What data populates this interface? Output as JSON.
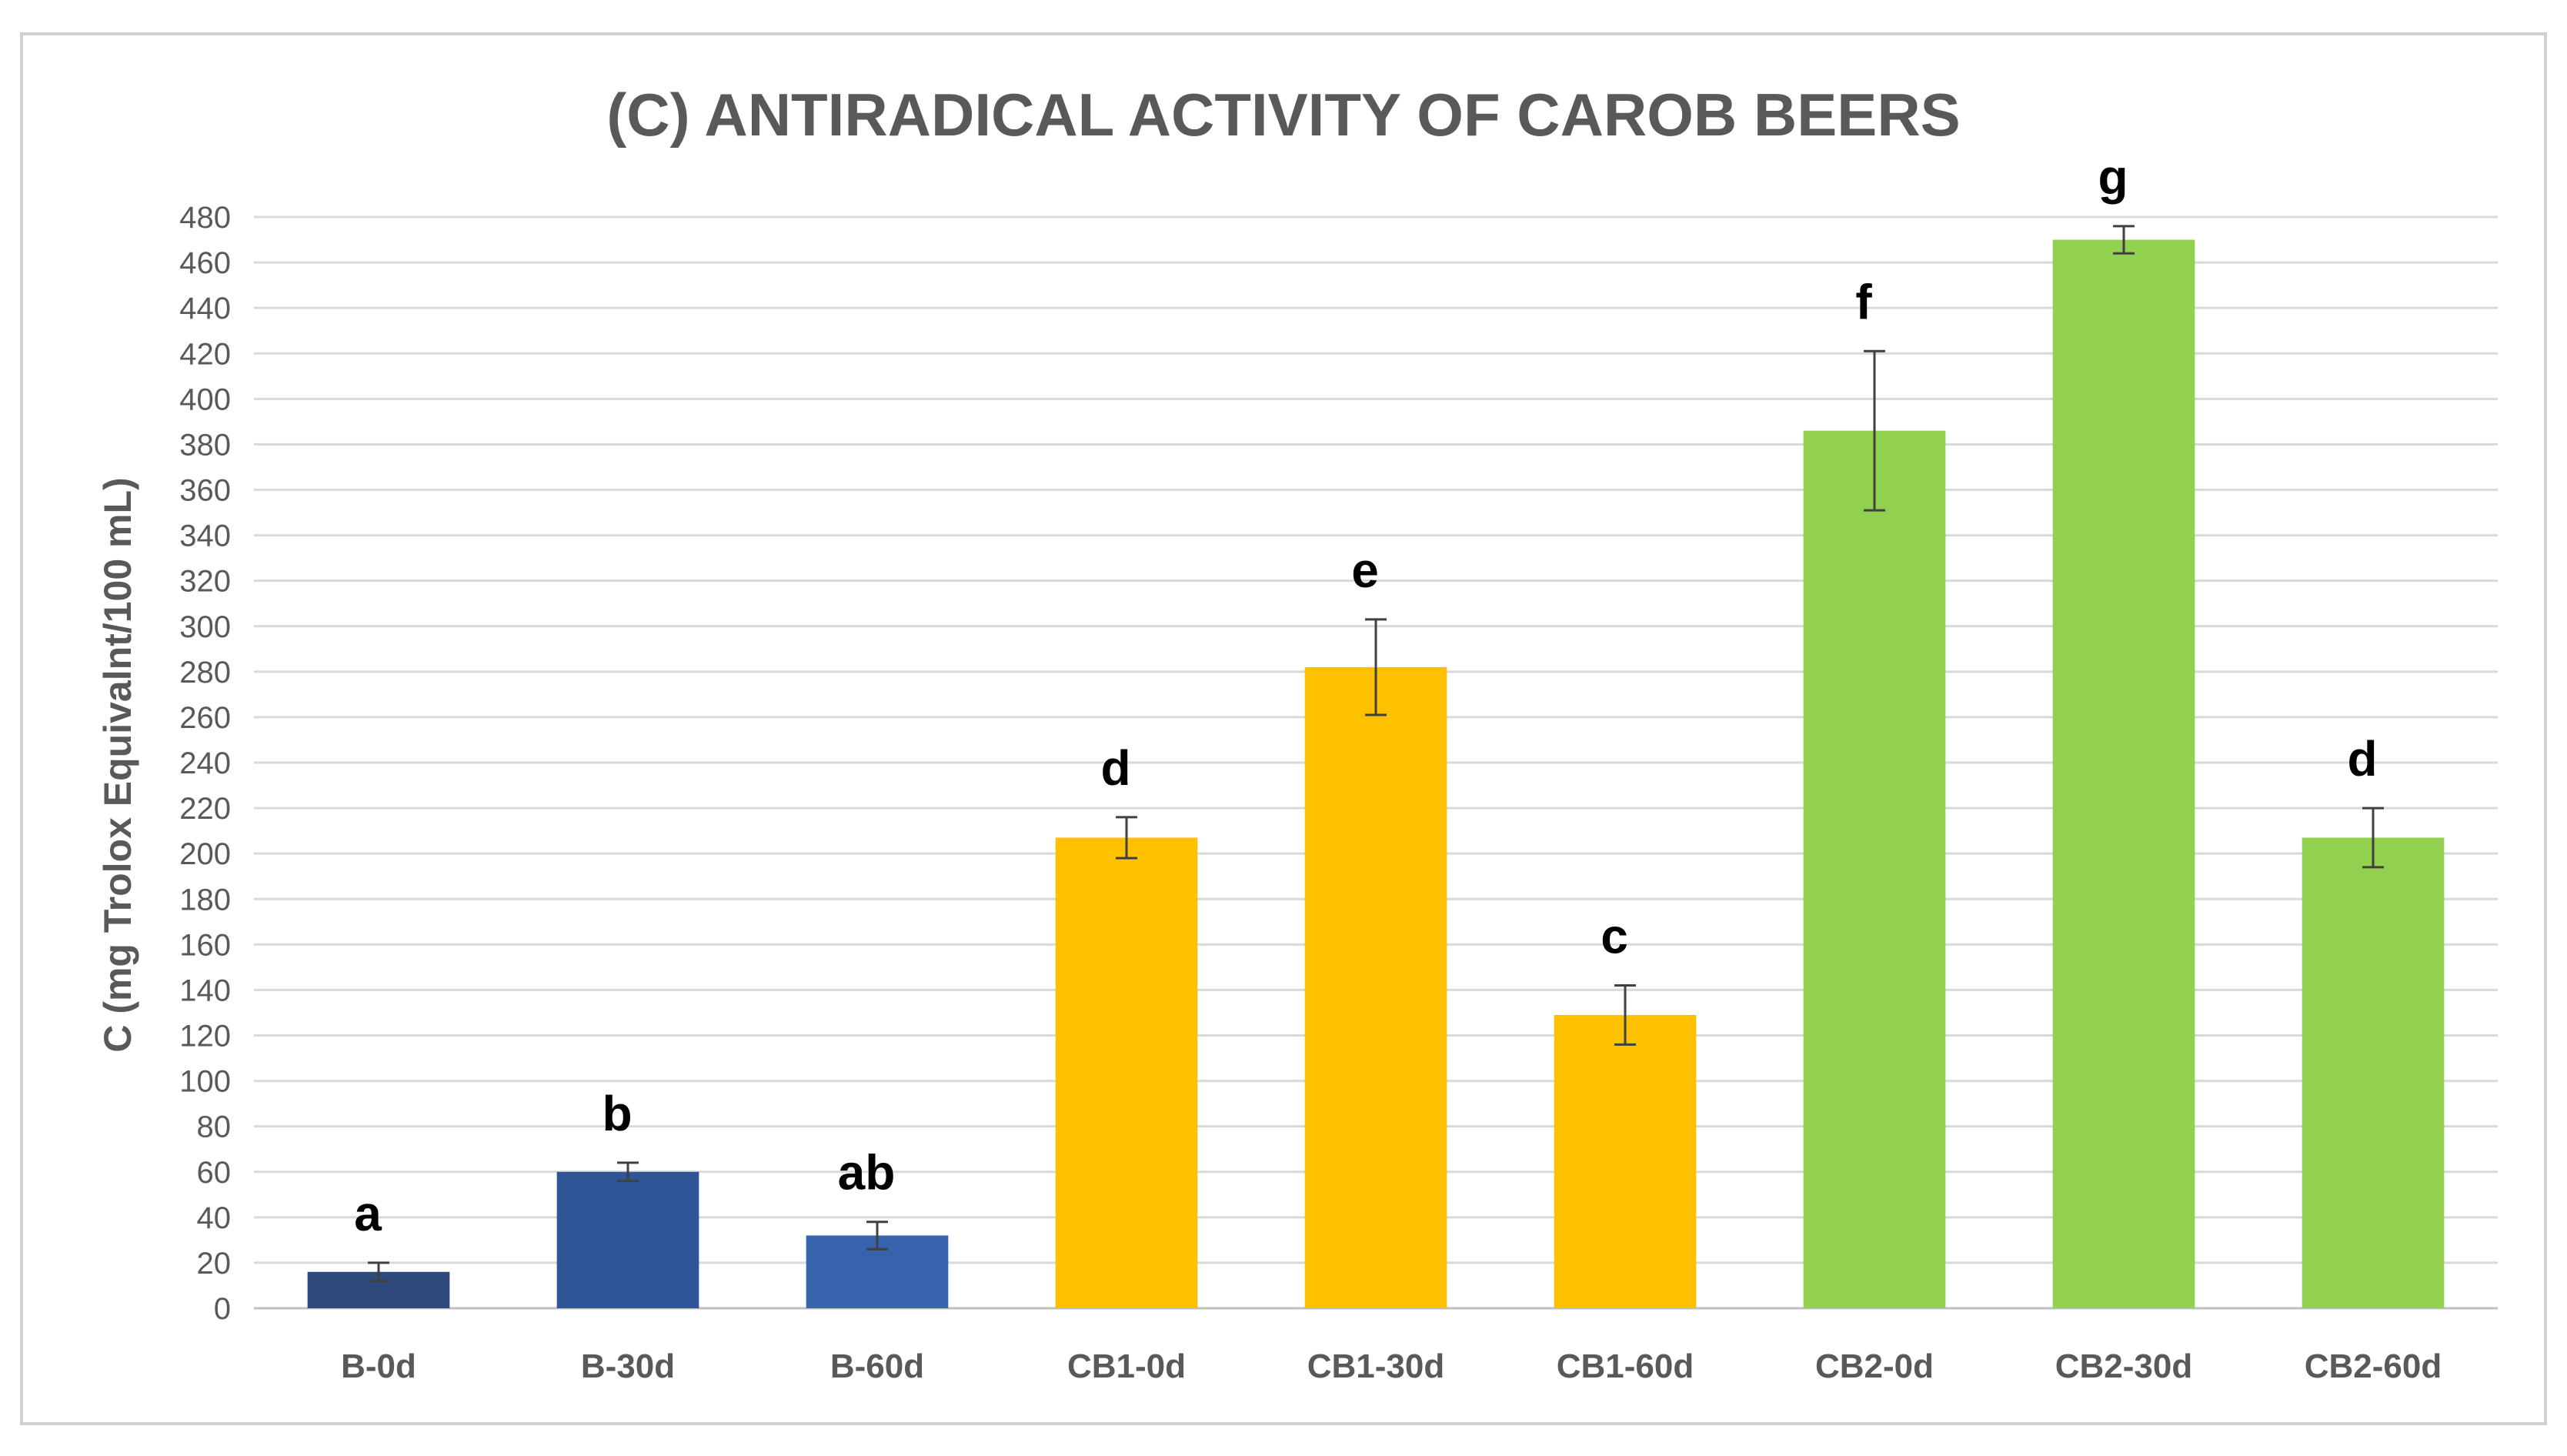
{
  "chart_data": {
    "type": "bar",
    "title": "(C) ANTIRADICAL ACTIVITY OF CAROB BEERS",
    "xlabel": "",
    "ylabel": "C (mg Trolox Equivalnt/100 mL)",
    "ylim": [
      0,
      480
    ],
    "ytick_step": 20,
    "grid": true,
    "legend": "none",
    "categories": [
      "B-0d",
      "B-30d",
      "B-60d",
      "CB1-0d",
      "CB1-30d",
      "CB1-60d",
      "CB2-0d",
      "CB2-30d",
      "CB2-60d"
    ],
    "values": [
      16,
      60,
      32,
      207,
      282,
      129,
      386,
      470,
      207
    ],
    "errors": [
      4,
      4,
      6,
      9,
      21,
      13,
      35,
      6,
      13
    ],
    "letters": [
      "a",
      "b",
      "ab",
      "d",
      "e",
      "c",
      "f",
      "g",
      "d"
    ],
    "colors": [
      "#2E4A7D",
      "#2F5597",
      "#3763AC",
      "#FFC000",
      "#FFC000",
      "#FFC000",
      "#92D050",
      "#92D050",
      "#92D050"
    ]
  },
  "style": {
    "grid_color": "#D9D9D9",
    "axis_color": "#BFBFBF",
    "border_color": "#D0D0D0",
    "error_color": "#404040"
  }
}
